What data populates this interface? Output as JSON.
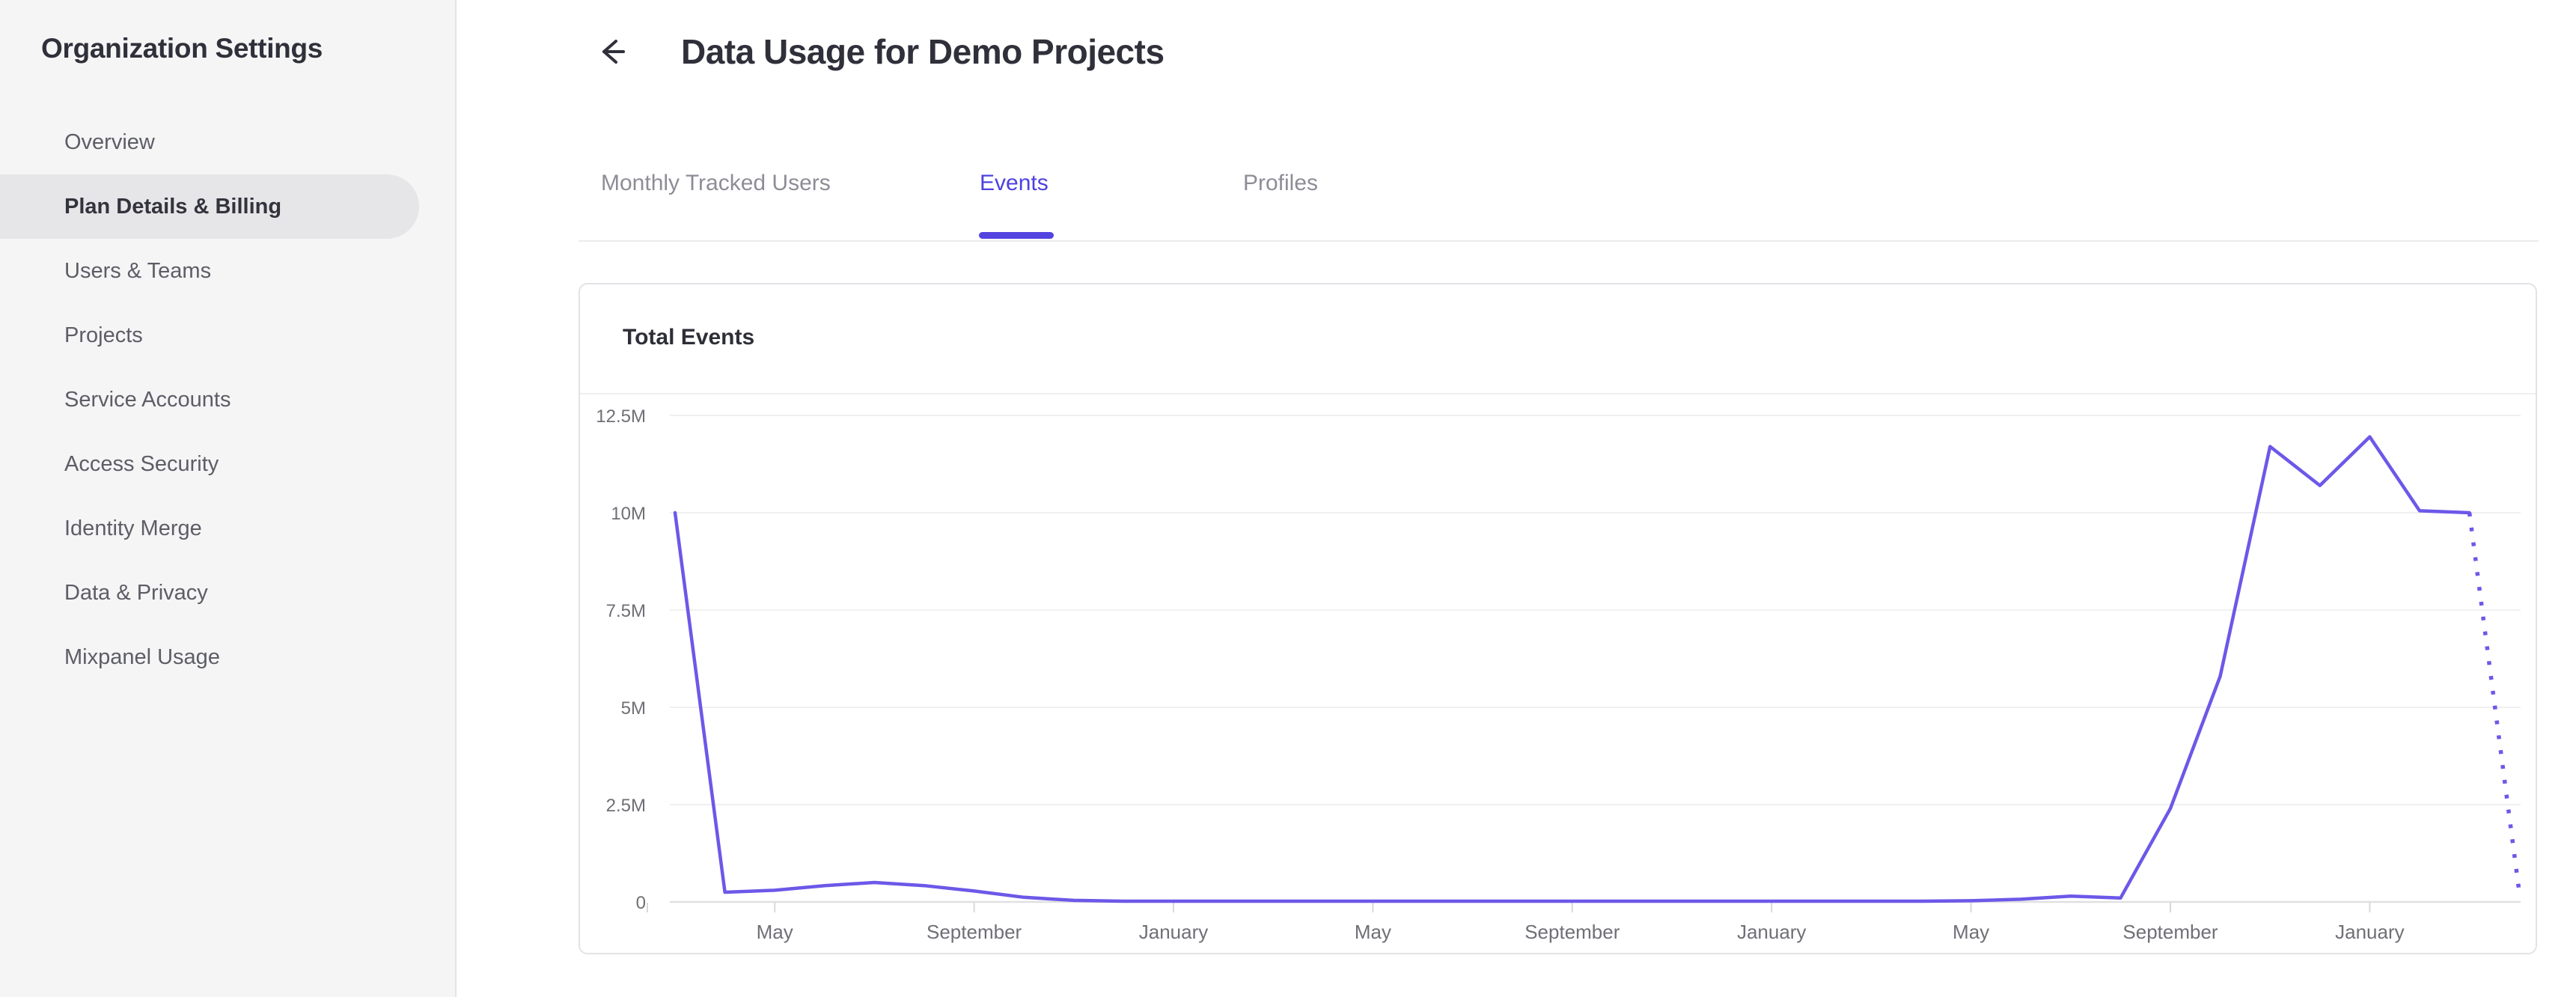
{
  "sidebar": {
    "title": "Organization Settings",
    "items": [
      {
        "label": "Overview",
        "selected": false
      },
      {
        "label": "Plan Details & Billing",
        "selected": true
      },
      {
        "label": "Users & Teams",
        "selected": false
      },
      {
        "label": "Projects",
        "selected": false
      },
      {
        "label": "Service Accounts",
        "selected": false
      },
      {
        "label": "Access Security",
        "selected": false
      },
      {
        "label": "Identity Merge",
        "selected": false
      },
      {
        "label": "Data & Privacy",
        "selected": false
      },
      {
        "label": "Mixpanel Usage",
        "selected": false
      }
    ]
  },
  "header": {
    "back_icon": "arrow-left",
    "title": "Data Usage for Demo Projects"
  },
  "tabs": [
    {
      "label": "Monthly Tracked Users",
      "active": false
    },
    {
      "label": "Events",
      "active": true
    },
    {
      "label": "Profiles",
      "active": false
    }
  ],
  "colors": {
    "accent_purple": "#5344e0",
    "active_tab_text": "#4d41e1",
    "line_purple": "#6c58e8",
    "sidebar_bg": "#f5f5f6",
    "selected_pill_bg": "#e6e6e8",
    "gridline": "#ebebed",
    "axis_text": "#6f6f76"
  },
  "chart_data": {
    "type": "line",
    "title": "Total Events",
    "xlabel": "",
    "ylabel": "",
    "y_unit": "millions of events",
    "ylim": [
      0,
      12.5
    ],
    "grid": "horizontal",
    "legend": "none",
    "y_ticks": [
      {
        "label": "12.5M",
        "value": 12.5
      },
      {
        "label": "10M",
        "value": 10
      },
      {
        "label": "7.5M",
        "value": 7.5
      },
      {
        "label": "5M",
        "value": 5
      },
      {
        "label": "2.5M",
        "value": 2.5
      },
      {
        "label": "0",
        "value": 0
      }
    ],
    "x_ticks": [
      {
        "label": "May",
        "point_index": 2
      },
      {
        "label": "September",
        "point_index": 6
      },
      {
        "label": "January",
        "point_index": 10
      },
      {
        "label": "May",
        "point_index": 14
      },
      {
        "label": "September",
        "point_index": 18
      },
      {
        "label": "January",
        "point_index": 22
      },
      {
        "label": "May",
        "point_index": 26
      },
      {
        "label": "September",
        "point_index": 30
      },
      {
        "label": "January",
        "point_index": 34
      }
    ],
    "series": [
      {
        "name": "Total Events",
        "color": "#6c58e8",
        "cadence": "monthly",
        "values_millions": [
          10,
          0.25,
          0.3,
          0.42,
          0.5,
          0.42,
          0.28,
          0.12,
          0.04,
          0.02,
          0.02,
          0.02,
          0.02,
          0.02,
          0.02,
          0.02,
          0.02,
          0.02,
          0.02,
          0.02,
          0.02,
          0.02,
          0.02,
          0.02,
          0.02,
          0.02,
          0.03,
          0.07,
          0.15,
          0.1,
          2.4,
          5.8,
          11.7,
          10.7,
          11.95,
          10.05,
          10.0,
          0.25
        ],
        "projected_final_segment": true
      }
    ]
  }
}
